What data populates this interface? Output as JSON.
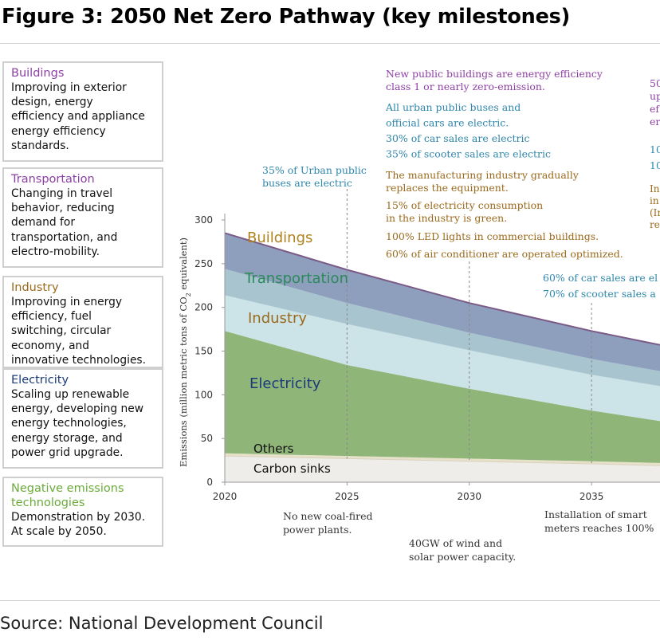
{
  "figure_title": "Figure 3: 2050 Net Zero Pathway (key milestones)",
  "source": "Source: National Development Council",
  "sectors": [
    {
      "heading": "Buildings",
      "heading_color": "#8d3fa3",
      "lines": [
        "Improving in exterior",
        "design, energy",
        "efficiency and appliance",
        "energy efficiency",
        "standards."
      ]
    },
    {
      "heading": "Transportation",
      "heading_color": "#8d3fa3",
      "lines": [
        "Changing in travel",
        "behavior, reducing",
        "demand for",
        "transportation, and",
        "electro-mobility."
      ]
    },
    {
      "heading": "Industry",
      "heading_color": "#9a6a1c",
      "lines": [
        "Improving in energy",
        "efficiency, fuel",
        "switching, circular",
        "economy, and",
        "innovative technologies."
      ]
    },
    {
      "heading": "Electricity",
      "heading_color": "#1a3a7a",
      "lines": [
        "Scaling up renewable",
        "energy, developing new",
        "energy technologies,",
        "energy storage, and",
        "power grid upgrade."
      ]
    },
    {
      "heading": "Negative emissions",
      "heading2": "technologies",
      "heading_color": "#6aab3a",
      "lines": [
        "Demonstration by 2030.",
        "At scale by 2050."
      ]
    }
  ],
  "colors": {
    "buildings": "#8e9fbd",
    "transportation": "#a8c4cf",
    "industry": "#cce3e7",
    "electricity": "#8fb579",
    "others_band": "#e7e1c9",
    "carbon_sinks": "#efedea",
    "purple_text": "#8d3fa3",
    "teal_text": "#2f87ab",
    "brown_text": "#9a6a1c",
    "green_text": "#2a8a5a",
    "navy_text": "#1a3a7a"
  },
  "chart_data": {
    "type": "area",
    "ylabel": "Emissions (million metric tons of CO",
    "ylabel_sub": "2",
    "ylabel_end": " equivalent)",
    "x_ticks": [
      "2020",
      "2025",
      "2030",
      "2035"
    ],
    "y_ticks": [
      "0",
      "50",
      "100",
      "150",
      "200",
      "250",
      "300"
    ],
    "ylim": [
      0,
      300
    ],
    "xlim": [
      2020,
      2037.8
    ],
    "grid": false,
    "x": [
      2020,
      2025,
      2030,
      2035,
      2037.8
    ],
    "series": [
      {
        "name": "Carbon sinks",
        "values": [
          30,
          27,
          24,
          21,
          19
        ]
      },
      {
        "name": "Others",
        "values": [
          3,
          3,
          3,
          3,
          3
        ]
      },
      {
        "name": "Electricity",
        "values": [
          140,
          104,
          80,
          58,
          48
        ]
      },
      {
        "name": "Industry",
        "values": [
          71,
          71,
          64,
          59,
          57
        ]
      },
      {
        "name": "Transportation",
        "values": [
          0,
          0,
          0,
          0,
          0
        ]
      },
      {
        "name": "Buildings",
        "values": [
          41,
          38,
          34,
          32,
          30
        ]
      }
    ],
    "series_labels": {
      "buildings": "Buildings",
      "transportation": "Transportation",
      "industry": "Industry",
      "electricity": "Electricity",
      "others": "Others",
      "carbon_sinks": "Carbon sinks"
    },
    "annotations": {
      "ann_2025_top": [
        "35% of Urban public",
        "buses are electric"
      ],
      "ann_2030_purple": [
        "New public buildings are energy efficiency",
        "class 1 or nearly zero-emission."
      ],
      "ann_2030_teal": [
        "All urban public buses and",
        "official cars are electric.",
        "30% of car sales are electric",
        "35% of scooter sales are electric"
      ],
      "ann_2030_brown": [
        "The manufacturing industry gradually",
        "replaces the equipment.",
        "15% of electricity consumption",
        "in the industry is green.",
        "100% LED lights in commercial buildings.",
        "60% of air conditioner are operated optimized."
      ],
      "ann_right_cut": [
        "50",
        "up",
        "ef",
        "er",
        "10",
        "10",
        "In",
        "in",
        "(Ir",
        "re"
      ],
      "ann_2035_teal": [
        "60% of car sales are el",
        "70% of scooter sales a"
      ],
      "ann_2025_bottom": [
        "No new coal-fired",
        "power plants."
      ],
      "ann_2030_bottom": [
        "40GW of wind and",
        "solar power capacity."
      ],
      "ann_2035_bottom": [
        "Installation of smart",
        "meters reaches 100%"
      ]
    }
  }
}
